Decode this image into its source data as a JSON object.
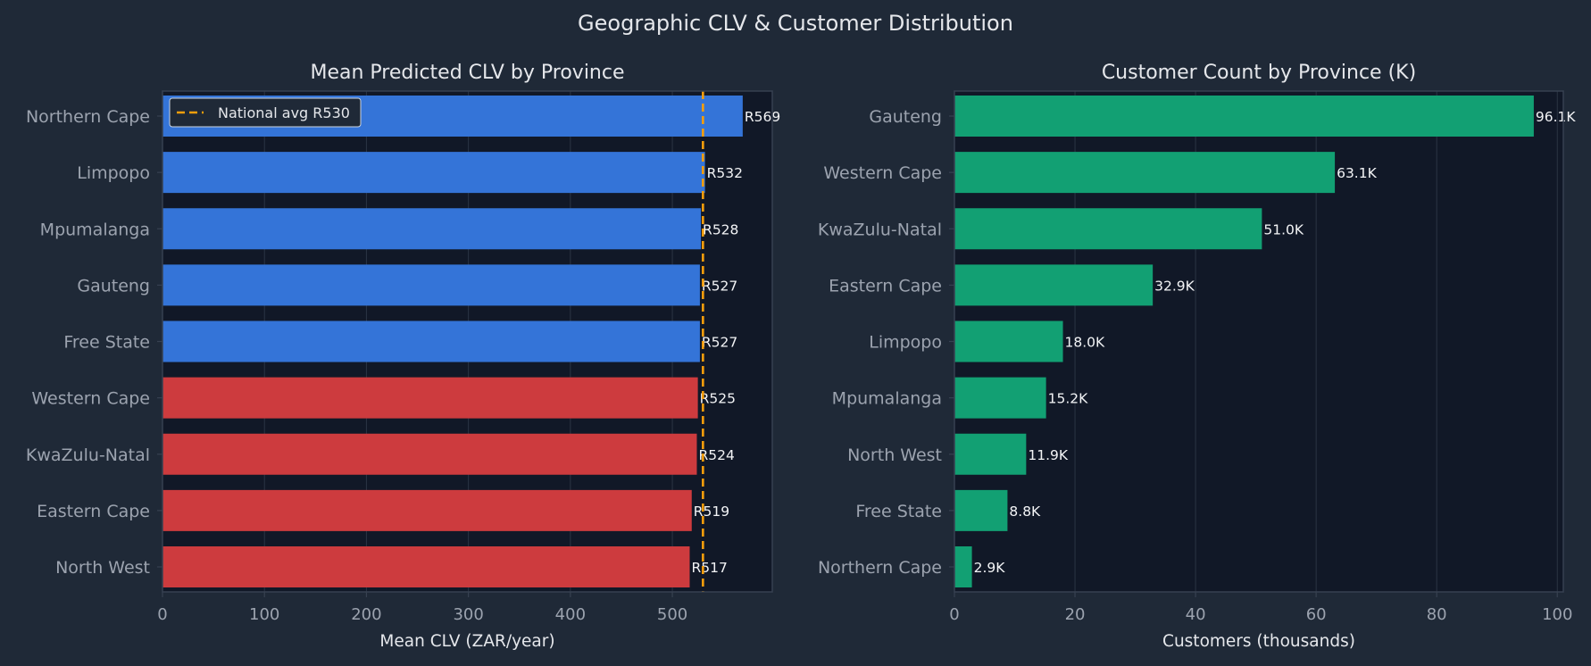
{
  "figure": {
    "suptitle": "Geographic CLV & Customer Distribution"
  },
  "colors": {
    "page_bg": "#1f2937",
    "plot_bg": "#111827",
    "axis_line": "#374151",
    "grid": "#2b3544",
    "text": "#e5e7eb",
    "tick_text": "#9ca3af",
    "above_avg": "#3474d8",
    "below_avg": "#cd3b3e",
    "count_bar": "#12a073",
    "avg_line": "#f59e0b"
  },
  "chart_data": [
    {
      "type": "bar",
      "orientation": "horizontal",
      "title": "Mean Predicted CLV by Province",
      "xlabel": "Mean CLV (ZAR/year)",
      "ylabel": "",
      "categories": [
        "Northern Cape",
        "Limpopo",
        "Mpumalanga",
        "Gauteng",
        "Free State",
        "Western Cape",
        "KwaZulu-Natal",
        "Eastern Cape",
        "North West"
      ],
      "values": [
        569,
        532,
        528,
        527,
        527,
        525,
        524,
        519,
        517
      ],
      "data_labels": [
        "R569",
        "R532",
        "R528",
        "R527",
        "R527",
        "R525",
        "R524",
        "R519",
        "R517"
      ],
      "bar_groups": [
        "above",
        "above",
        "above",
        "above",
        "above",
        "below",
        "below",
        "below",
        "below"
      ],
      "xlim": [
        0,
        598
      ],
      "xticks": [
        0,
        100,
        200,
        300,
        400,
        500
      ],
      "grid": true,
      "reference_line": {
        "value": 530,
        "label": "National avg R530",
        "style": "dashed"
      },
      "legend": {
        "placement": "upper-left",
        "entries": [
          "National avg R530"
        ]
      }
    },
    {
      "type": "bar",
      "orientation": "horizontal",
      "title": "Customer Count by Province (K)",
      "xlabel": "Customers (thousands)",
      "ylabel": "",
      "categories": [
        "Gauteng",
        "Western Cape",
        "KwaZulu-Natal",
        "Eastern Cape",
        "Limpopo",
        "Mpumalanga",
        "North West",
        "Free State",
        "Northern Cape"
      ],
      "values": [
        96.1,
        63.1,
        51.0,
        32.9,
        18.0,
        15.2,
        11.9,
        8.8,
        2.9
      ],
      "data_labels": [
        "96.1K",
        "63.1K",
        "51.0K",
        "32.9K",
        "18.0K",
        "15.2K",
        "11.9K",
        "8.8K",
        "2.9K"
      ],
      "xlim": [
        0,
        101
      ],
      "xticks": [
        0,
        20,
        40,
        60,
        80,
        100
      ],
      "grid": true
    }
  ]
}
